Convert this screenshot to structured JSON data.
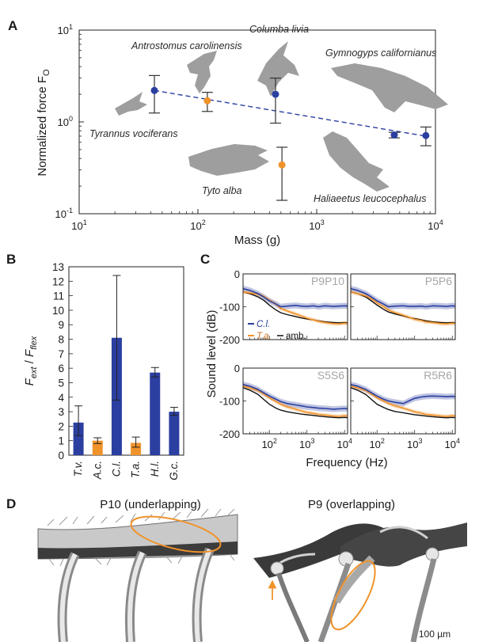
{
  "panels": {
    "A": "A",
    "B": "B",
    "C": "C",
    "D": "D"
  },
  "colors": {
    "blue": "#2b3fa0",
    "orange": "#f0932b",
    "silhouette": "#9e9e9e",
    "ambient": "#111111",
    "title_gray": "#a6a6a6"
  },
  "chart_data": [
    {
      "type": "scatter",
      "panel": "A",
      "ylabel_main": "Normalized force F",
      "ylabel_sub": "O",
      "xlabel": "Mass (g)",
      "xscale": "log",
      "yscale": "log",
      "xlim": [
        10,
        10000
      ],
      "ylim": [
        0.1,
        10
      ],
      "x_ticks": [
        {
          "base": "10",
          "exp": "1"
        },
        {
          "base": "10",
          "exp": "2"
        },
        {
          "base": "10",
          "exp": "3"
        },
        {
          "base": "10",
          "exp": "4"
        }
      ],
      "y_ticks": [
        {
          "base": "10",
          "exp": "1"
        },
        {
          "base": "10",
          "exp": "0"
        },
        {
          "base": "10",
          "exp": "-1"
        }
      ],
      "points": [
        {
          "species": "Tyrannus vociferans",
          "mass": 43,
          "force": 2.2,
          "err_low": 1.25,
          "err_high": 3.2,
          "color": "blue"
        },
        {
          "species": "Antrostomus carolinensis",
          "mass": 120,
          "force": 1.7,
          "err_low": 1.3,
          "err_high": 2.1,
          "color": "orange"
        },
        {
          "species": "Columba livia",
          "mass": 450,
          "force": 2.0,
          "err_low": 0.97,
          "err_high": 3.0,
          "color": "blue"
        },
        {
          "species": "Tyto alba",
          "mass": 510,
          "force": 0.34,
          "err_low": 0.14,
          "err_high": 0.53,
          "color": "orange"
        },
        {
          "species": "Haliaeetus leucocephalus",
          "mass": 4500,
          "force": 0.72,
          "err_low": 0.67,
          "err_high": 0.77,
          "color": "blue"
        },
        {
          "species": "Gymnogyps californianus",
          "mass": 8300,
          "force": 0.71,
          "err_low": 0.55,
          "err_high": 0.88,
          "color": "blue"
        }
      ],
      "fit_line": {
        "from": {
          "mass": 43,
          "force": 2.2
        },
        "to": {
          "mass": 8300,
          "force": 0.7
        },
        "style": "dashed"
      },
      "species_labels": [
        "Antrostomus carolinensis",
        "Columba livia",
        "Gymnogyps californianus",
        "Tyrannus vociferans",
        "Tyto alba",
        "Haliaeetus leucocephalus"
      ]
    },
    {
      "type": "bar",
      "panel": "B",
      "ylabel_num": "F",
      "ylabel_num_sub": "ext",
      "ylabel_sep": " / ",
      "ylabel_den": "F",
      "ylabel_den_sub": "flex",
      "ylim": [
        0,
        13
      ],
      "y_ticks": [
        "0",
        "1",
        "2",
        "3",
        "4",
        "5",
        "6",
        "7",
        "8",
        "9",
        "10",
        "11",
        "12",
        "13"
      ],
      "categories": [
        "T.v.",
        "A.c.",
        "C.l.",
        "T.a.",
        "H.l.",
        "G.c."
      ],
      "values": [
        2.25,
        1.0,
        8.1,
        0.85,
        5.7,
        3.0
      ],
      "err_low": [
        1.35,
        0.8,
        3.8,
        0.55,
        5.4,
        2.75
      ],
      "err_high": [
        3.4,
        1.2,
        12.4,
        1.25,
        6.05,
        3.3
      ],
      "bar_colors": [
        "blue",
        "orange",
        "blue",
        "orange",
        "blue",
        "blue"
      ]
    },
    {
      "type": "line",
      "panel": "C",
      "ylabel": "Sound level (dB)",
      "xlabel": "Frequency (Hz)",
      "xscale": "log",
      "xlim": [
        20,
        12000
      ],
      "ylim": [
        -200,
        0
      ],
      "y_ticks": [
        "0",
        "-100",
        "-200"
      ],
      "x_ticks": [
        {
          "base": "10",
          "exp": "2"
        },
        {
          "base": "10",
          "exp": "3"
        },
        {
          "base": "10",
          "exp": "4"
        }
      ],
      "legend": {
        "blue": "C.l.",
        "orange": "T.a.",
        "ambient": "amb."
      },
      "x": [
        20,
        30,
        50,
        70,
        100,
        150,
        200,
        300,
        500,
        700,
        1000,
        1500,
        2000,
        3000,
        5000,
        7000,
        10000,
        12000
      ],
      "subplots": [
        {
          "title": "P9P10",
          "blue": [
            -45,
            -50,
            -60,
            -70,
            -82,
            -92,
            -100,
            -98,
            -96,
            -98,
            -99,
            -97,
            -100,
            -97,
            -99,
            -98,
            -97,
            -98
          ],
          "orange": [
            -55,
            -58,
            -62,
            -68,
            -80,
            -92,
            -105,
            -113,
            -122,
            -128,
            -135,
            -140,
            -144,
            -148,
            -151,
            -152,
            -150,
            -151
          ],
          "ambient": [
            -55,
            -60,
            -70,
            -80,
            -95,
            -110,
            -118,
            -124,
            -130,
            -134,
            -137,
            -140,
            -143,
            -146,
            -148,
            -149,
            -148,
            -149
          ]
        },
        {
          "title": "P5P6",
          "blue": [
            -45,
            -50,
            -60,
            -70,
            -82,
            -92,
            -100,
            -98,
            -97,
            -99,
            -99,
            -98,
            -100,
            -97,
            -98,
            -99,
            -97,
            -98
          ],
          "orange": [
            -55,
            -60,
            -67,
            -75,
            -88,
            -100,
            -110,
            -118,
            -126,
            -132,
            -138,
            -142,
            -146,
            -148,
            -151,
            -152,
            -150,
            -151
          ],
          "ambient": [
            -55,
            -60,
            -70,
            -82,
            -95,
            -108,
            -116,
            -122,
            -128,
            -133,
            -136,
            -140,
            -143,
            -146,
            -148,
            -149,
            -148,
            -149
          ]
        },
        {
          "title": "S5S6",
          "blue": [
            -50,
            -55,
            -65,
            -75,
            -85,
            -95,
            -102,
            -108,
            -112,
            -115,
            -118,
            -120,
            -122,
            -123,
            -125,
            -124,
            -123,
            -124
          ],
          "orange": [
            -55,
            -60,
            -68,
            -78,
            -90,
            -102,
            -110,
            -118,
            -125,
            -130,
            -135,
            -138,
            -141,
            -143,
            -146,
            -147,
            -145,
            -146
          ],
          "ambient": [
            -60,
            -67,
            -80,
            -95,
            -110,
            -122,
            -128,
            -133,
            -137,
            -140,
            -142,
            -144,
            -146,
            -148,
            -150,
            -151,
            -150,
            -151
          ]
        },
        {
          "title": "R5R6",
          "blue": [
            -50,
            -55,
            -65,
            -75,
            -85,
            -95,
            -100,
            -104,
            -108,
            -100,
            -92,
            -88,
            -86,
            -85,
            -86,
            -87,
            -86,
            -87
          ],
          "orange": [
            -55,
            -60,
            -68,
            -78,
            -90,
            -100,
            -108,
            -115,
            -122,
            -127,
            -133,
            -137,
            -141,
            -143,
            -146,
            -147,
            -145,
            -146
          ],
          "ambient": [
            -60,
            -67,
            -80,
            -95,
            -110,
            -120,
            -126,
            -132,
            -136,
            -139,
            -142,
            -144,
            -146,
            -148,
            -150,
            -151,
            -150,
            -151
          ]
        }
      ]
    }
  ],
  "panel_d": {
    "left_title": "P10 (underlapping)",
    "right_title": "P9 (overlapping)",
    "scale_bar": "100 µm"
  }
}
